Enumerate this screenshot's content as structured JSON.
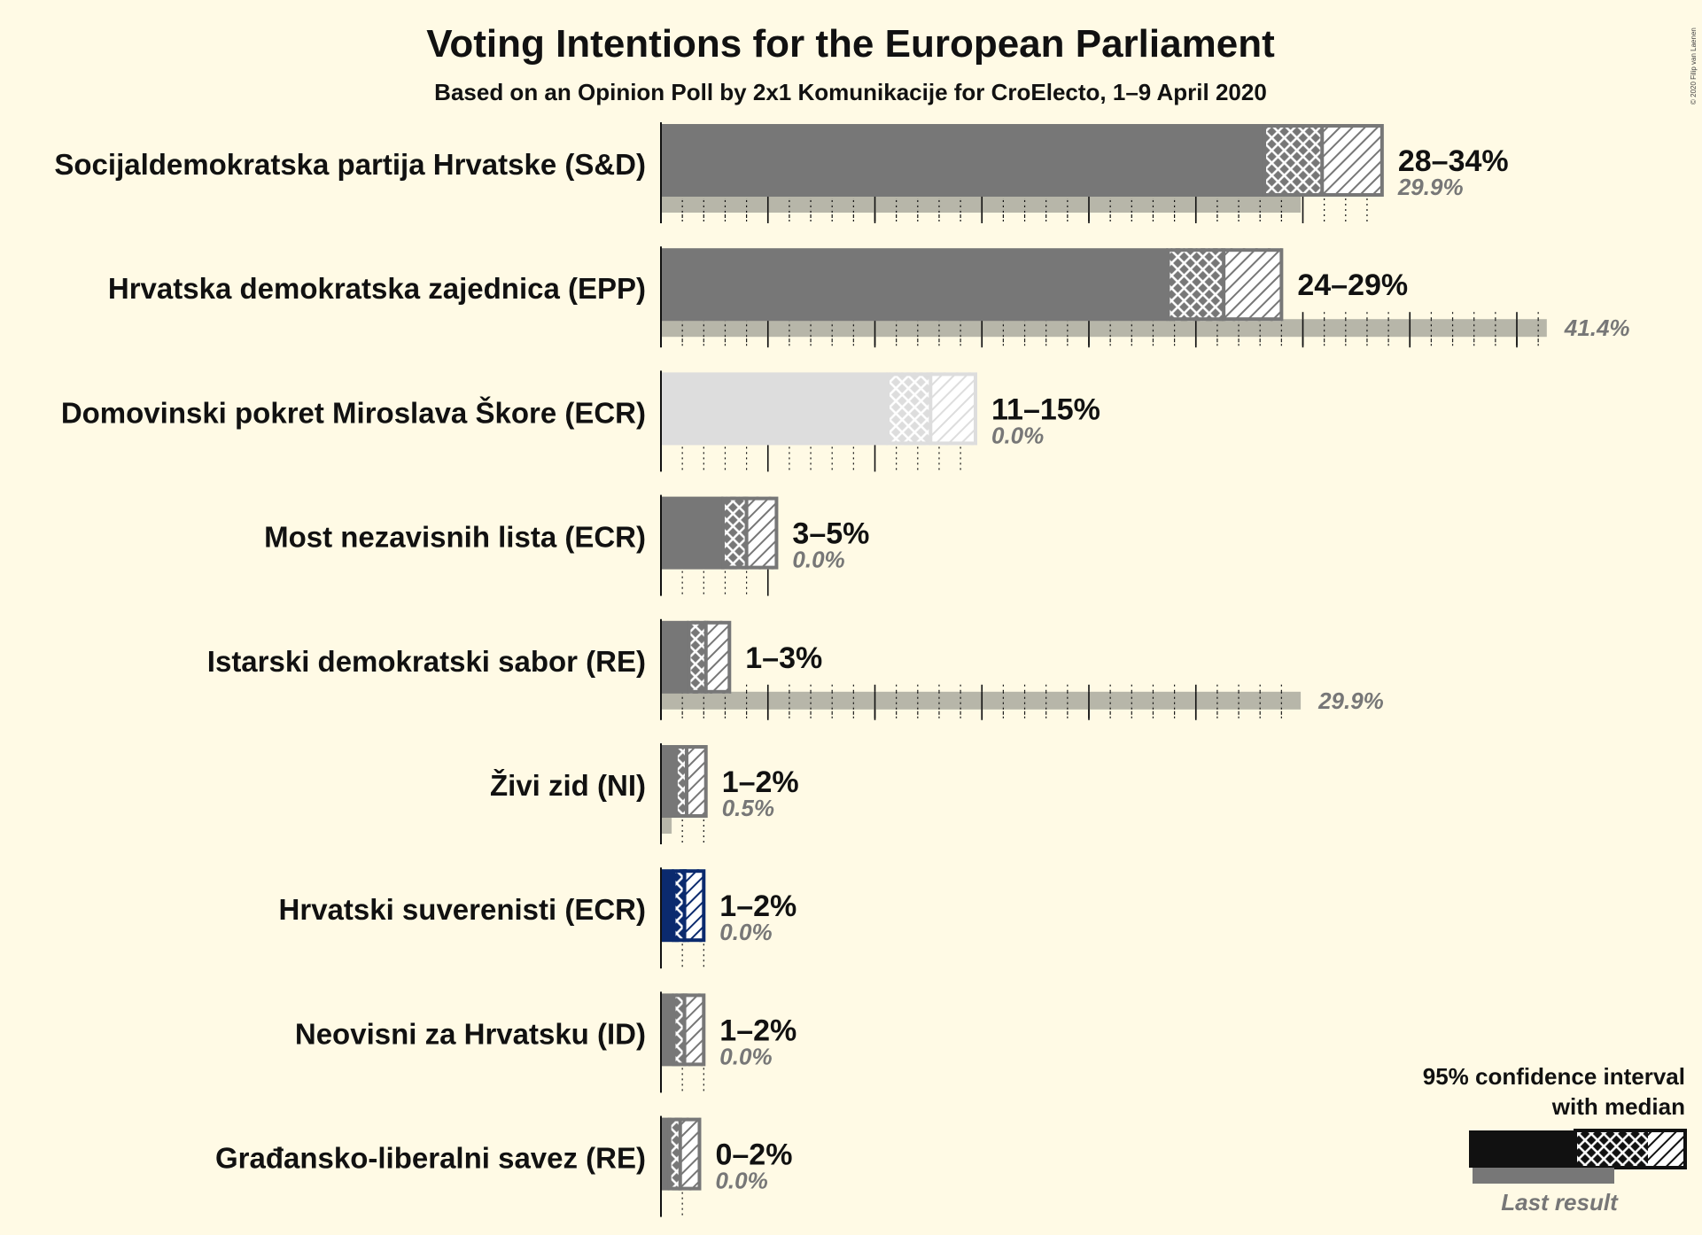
{
  "chart_data": {
    "type": "bar",
    "title": "Voting Intentions for the European Parliament",
    "subtitle": "Based on an Opinion Poll by 2x1 Komunikacije for CroElecto, 1–9 April 2020",
    "copyright": "© 2020 Filip van Laenen",
    "xlim": [
      0,
      45
    ],
    "colors": {
      "background": "#fffae5",
      "bar": "#777777",
      "last_result": "#b3b2a5",
      "light_bar": "#dddddd",
      "highlight_bar": "#0b2a6e",
      "legend_bar": "#111111"
    },
    "parties": [
      {
        "name": "Socijaldemokratska partija Hrvatske (S&D)",
        "range_label": "28–34%",
        "last_label": "29.9%",
        "low": 28.2,
        "median": 30.9,
        "high": 33.7,
        "last": 29.9,
        "style": "default"
      },
      {
        "name": "Hrvatska demokratska zajednica (EPP)",
        "range_label": "24–29%",
        "last_label": "41.4%",
        "low": 23.7,
        "median": 26.3,
        "high": 29.0,
        "last": 41.4,
        "style": "default"
      },
      {
        "name": "Domovinski pokret Miroslava Škore (ECR)",
        "range_label": "11–15%",
        "last_label": "0.0%",
        "low": 10.6,
        "median": 12.6,
        "high": 14.7,
        "last": 0.0,
        "style": "light"
      },
      {
        "name": "Most nezavisnih lista (ECR)",
        "range_label": "3–5%",
        "last_label": "0.0%",
        "low": 2.9,
        "median": 4.0,
        "high": 5.4,
        "last": 0.0,
        "style": "default"
      },
      {
        "name": "Istarski demokratski sabor (RE)",
        "range_label": "1–3%",
        "last_label": "29.9%",
        "low": 1.3,
        "median": 2.1,
        "high": 3.2,
        "last": 29.9,
        "style": "default"
      },
      {
        "name": "Živi zid (NI)",
        "range_label": "1–2%",
        "last_label": "0.5%",
        "low": 0.7,
        "median": 1.2,
        "high": 2.1,
        "last": 0.5,
        "style": "default"
      },
      {
        "name": "Hrvatski suverenisti (ECR)",
        "range_label": "1–2%",
        "last_label": "0.0%",
        "low": 0.6,
        "median": 1.1,
        "high": 2.0,
        "last": 0.0,
        "style": "highlight"
      },
      {
        "name": "Neovisni za Hrvatsku (ID)",
        "range_label": "1–2%",
        "last_label": "0.0%",
        "low": 0.6,
        "median": 1.1,
        "high": 2.0,
        "last": 0.0,
        "style": "default"
      },
      {
        "name": "Građansko-liberalni savez (RE)",
        "range_label": "0–2%",
        "last_label": "0.0%",
        "low": 0.4,
        "median": 0.9,
        "high": 1.8,
        "last": 0.0,
        "style": "default"
      }
    ],
    "legend": {
      "line1": "95% confidence interval",
      "line2": "with median",
      "last_result": "Last result"
    }
  }
}
